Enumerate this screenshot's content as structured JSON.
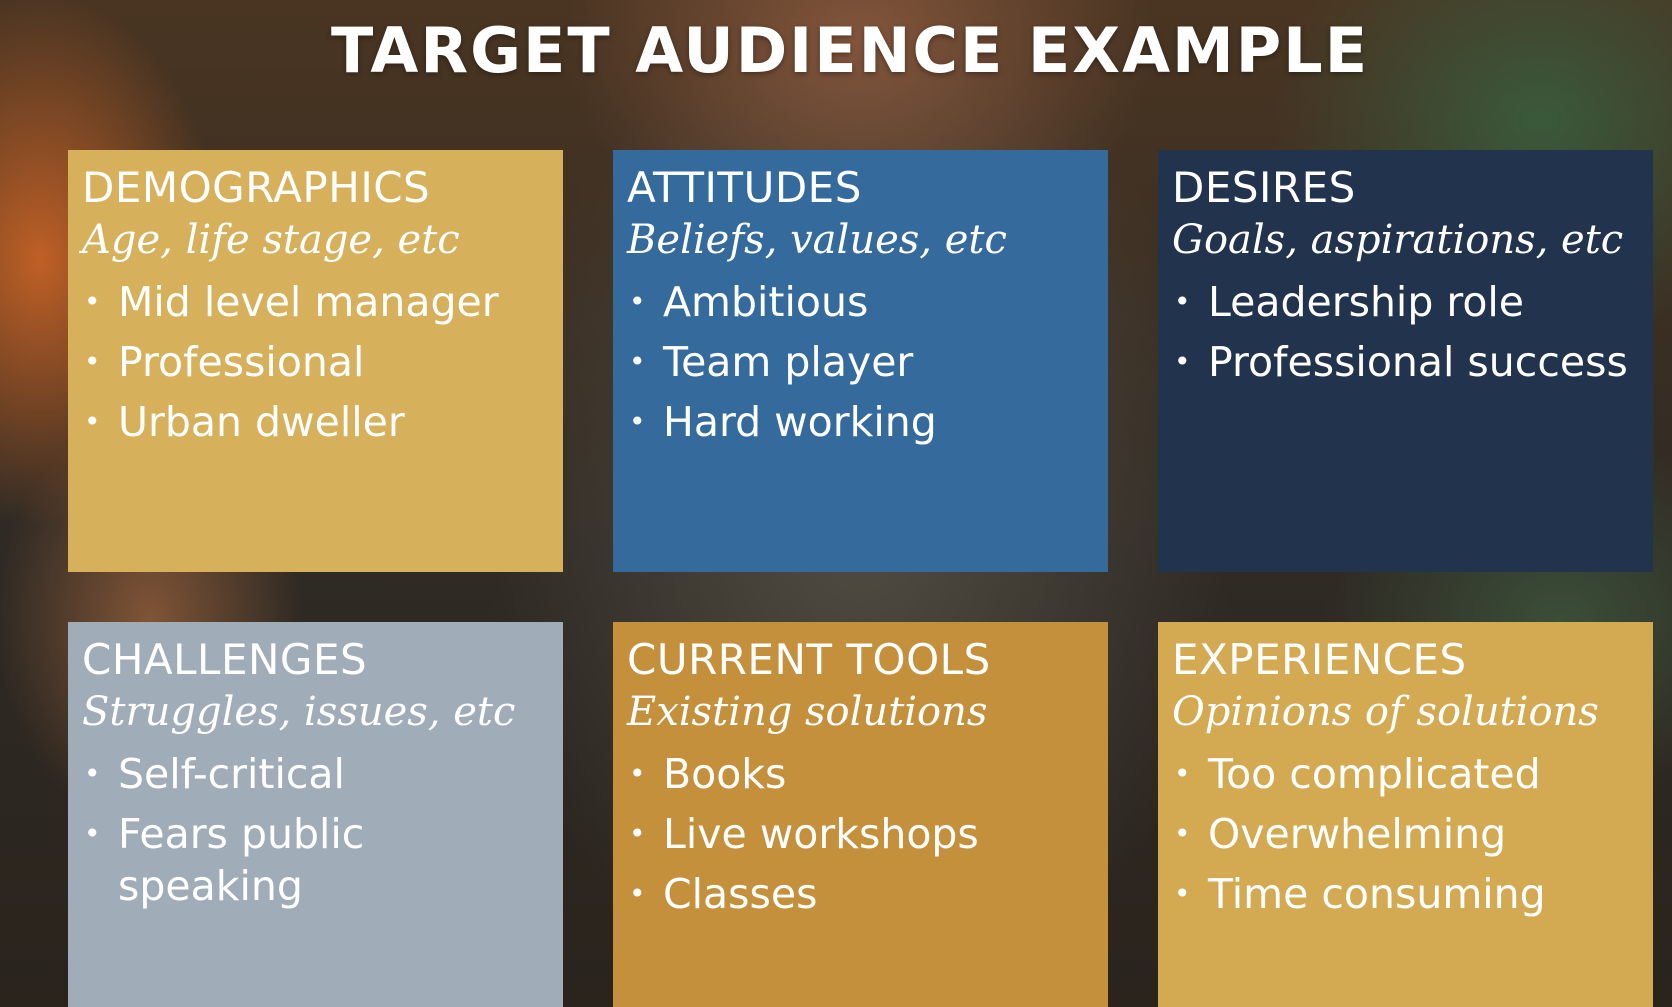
{
  "title": "TARGET AUDIENCE EXAMPLE",
  "cards": [
    {
      "heading": "DEMOGRAPHICS",
      "subheading": "Age, life stage, etc",
      "items": [
        "Mid level manager",
        "Professional",
        "Urban dweller"
      ],
      "color": "#d6b05a"
    },
    {
      "heading": "ATTITUDES",
      "subheading": "Beliefs, values, etc",
      "items": [
        "Ambitious",
        "Team player",
        "Hard working"
      ],
      "color": "#346a9c"
    },
    {
      "heading": "DESIRES",
      "subheading": "Goals, aspirations, etc",
      "items": [
        "Leadership role",
        "Professional success"
      ],
      "color": "#22334d"
    },
    {
      "heading": "CHALLENGES",
      "subheading": "Struggles, issues, etc",
      "items": [
        "Self-critical",
        "Fears public speaking"
      ],
      "color": "#a1acb9"
    },
    {
      "heading": "CURRENT TOOLS",
      "subheading": "Existing solutions",
      "items": [
        "Books",
        "Live workshops",
        "Classes"
      ],
      "color": "#c4903c"
    },
    {
      "heading": "EXPERIENCES",
      "subheading": "Opinions of solutions",
      "items": [
        "Too complicated",
        "Overwhelming",
        "Time consuming"
      ],
      "color": "#d3aa52"
    }
  ]
}
